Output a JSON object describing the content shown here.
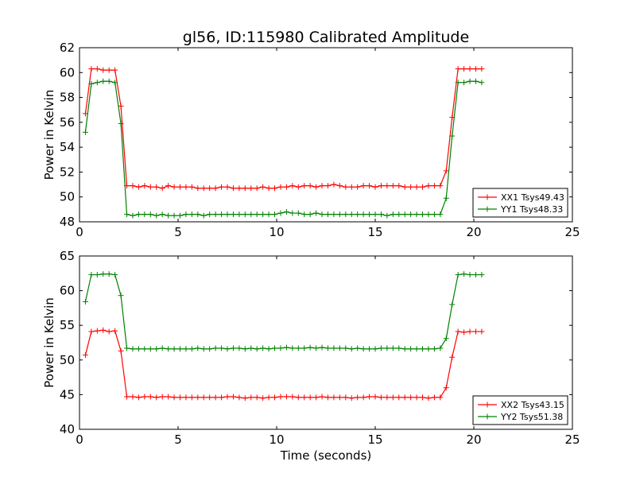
{
  "title": "gl56, ID:115980 Calibrated Amplitude",
  "xlabel": "Time (seconds)",
  "colors": {
    "red": "#ff0000",
    "green": "#008000",
    "axis": "#000000"
  },
  "chart_data": [
    {
      "type": "line",
      "ylabel": "Power in Kelvin",
      "xlim": [
        0,
        25
      ],
      "ylim": [
        48,
        62
      ],
      "xticks": [
        "0",
        "5",
        "10",
        "15",
        "20",
        "25"
      ],
      "yticks": [
        "48",
        "50",
        "52",
        "54",
        "56",
        "58",
        "60",
        "62"
      ],
      "x": [
        0.3,
        0.6,
        0.9,
        1.2,
        1.5,
        1.8,
        2.1,
        2.4,
        2.7,
        3.0,
        3.3,
        3.6,
        3.9,
        4.2,
        4.5,
        4.8,
        5.1,
        5.4,
        5.7,
        6.0,
        6.3,
        6.6,
        6.9,
        7.2,
        7.5,
        7.8,
        8.1,
        8.4,
        8.7,
        9.0,
        9.3,
        9.6,
        9.9,
        10.2,
        10.5,
        10.8,
        11.1,
        11.4,
        11.7,
        12.0,
        12.3,
        12.6,
        12.9,
        13.2,
        13.5,
        13.8,
        14.1,
        14.4,
        14.7,
        15.0,
        15.3,
        15.6,
        15.9,
        16.2,
        16.5,
        16.8,
        17.1,
        17.4,
        17.7,
        18.0,
        18.3,
        18.6,
        18.9,
        19.2,
        19.5,
        19.8,
        20.1,
        20.4
      ],
      "series": [
        {
          "name": "XX1 Tsys49.43",
          "color": "#ff0000",
          "values": [
            56.7,
            60.3,
            60.3,
            60.2,
            60.2,
            60.2,
            57.3,
            50.9,
            50.9,
            50.8,
            50.9,
            50.8,
            50.8,
            50.7,
            50.9,
            50.8,
            50.8,
            50.8,
            50.8,
            50.7,
            50.7,
            50.7,
            50.7,
            50.8,
            50.8,
            50.7,
            50.7,
            50.7,
            50.7,
            50.7,
            50.8,
            50.7,
            50.7,
            50.8,
            50.8,
            50.9,
            50.8,
            50.9,
            50.9,
            50.8,
            50.9,
            50.9,
            51.0,
            50.9,
            50.8,
            50.8,
            50.8,
            50.9,
            50.9,
            50.8,
            50.9,
            50.9,
            50.9,
            50.9,
            50.8,
            50.8,
            50.8,
            50.8,
            50.9,
            50.9,
            50.9,
            52.1,
            56.4,
            60.3,
            60.3,
            60.3,
            60.3,
            60.3
          ]
        },
        {
          "name": "YY1 Tsys48.33",
          "color": "#008000",
          "values": [
            55.2,
            59.1,
            59.2,
            59.3,
            59.3,
            59.2,
            55.9,
            48.6,
            48.5,
            48.6,
            48.6,
            48.6,
            48.5,
            48.6,
            48.5,
            48.5,
            48.5,
            48.6,
            48.6,
            48.6,
            48.5,
            48.6,
            48.6,
            48.6,
            48.6,
            48.6,
            48.6,
            48.6,
            48.6,
            48.6,
            48.6,
            48.6,
            48.6,
            48.7,
            48.8,
            48.7,
            48.7,
            48.6,
            48.6,
            48.7,
            48.6,
            48.6,
            48.6,
            48.6,
            48.6,
            48.6,
            48.6,
            48.6,
            48.6,
            48.6,
            48.6,
            48.5,
            48.6,
            48.6,
            48.6,
            48.6,
            48.6,
            48.6,
            48.6,
            48.6,
            48.6,
            49.9,
            54.9,
            59.2,
            59.2,
            59.3,
            59.3,
            59.2
          ]
        }
      ],
      "legend": "bottom-right"
    },
    {
      "type": "line",
      "ylabel": "Power in Kelvin",
      "xlabel": "Time (seconds)",
      "xlim": [
        0,
        25
      ],
      "ylim": [
        40,
        65
      ],
      "xticks": [
        "0",
        "5",
        "10",
        "15",
        "20",
        "25"
      ],
      "yticks": [
        "40",
        "45",
        "50",
        "55",
        "60",
        "65"
      ],
      "x": [
        0.3,
        0.6,
        0.9,
        1.2,
        1.5,
        1.8,
        2.1,
        2.4,
        2.7,
        3.0,
        3.3,
        3.6,
        3.9,
        4.2,
        4.5,
        4.8,
        5.1,
        5.4,
        5.7,
        6.0,
        6.3,
        6.6,
        6.9,
        7.2,
        7.5,
        7.8,
        8.1,
        8.4,
        8.7,
        9.0,
        9.3,
        9.6,
        9.9,
        10.2,
        10.5,
        10.8,
        11.1,
        11.4,
        11.7,
        12.0,
        12.3,
        12.6,
        12.9,
        13.2,
        13.5,
        13.8,
        14.1,
        14.4,
        14.7,
        15.0,
        15.3,
        15.6,
        15.9,
        16.2,
        16.5,
        16.8,
        17.1,
        17.4,
        17.7,
        18.0,
        18.3,
        18.6,
        18.9,
        19.2,
        19.5,
        19.8,
        20.1,
        20.4
      ],
      "series": [
        {
          "name": "XX2 Tsys43.15",
          "color": "#ff0000",
          "values": [
            50.7,
            54.1,
            54.2,
            54.3,
            54.1,
            54.2,
            51.3,
            44.7,
            44.7,
            44.6,
            44.7,
            44.7,
            44.6,
            44.7,
            44.7,
            44.6,
            44.6,
            44.6,
            44.6,
            44.6,
            44.6,
            44.6,
            44.6,
            44.6,
            44.7,
            44.7,
            44.6,
            44.5,
            44.6,
            44.6,
            44.5,
            44.6,
            44.6,
            44.7,
            44.7,
            44.7,
            44.6,
            44.6,
            44.6,
            44.6,
            44.7,
            44.6,
            44.6,
            44.6,
            44.6,
            44.5,
            44.6,
            44.6,
            44.7,
            44.7,
            44.6,
            44.6,
            44.6,
            44.6,
            44.6,
            44.6,
            44.6,
            44.6,
            44.5,
            44.6,
            44.6,
            46.0,
            50.4,
            54.1,
            54.0,
            54.1,
            54.1,
            54.1
          ]
        },
        {
          "name": "YY2 Tsys51.38",
          "color": "#008000",
          "values": [
            58.4,
            62.3,
            62.3,
            62.4,
            62.4,
            62.3,
            59.3,
            51.7,
            51.6,
            51.6,
            51.6,
            51.6,
            51.6,
            51.7,
            51.6,
            51.6,
            51.6,
            51.6,
            51.6,
            51.7,
            51.6,
            51.6,
            51.7,
            51.7,
            51.6,
            51.7,
            51.7,
            51.6,
            51.7,
            51.6,
            51.7,
            51.6,
            51.7,
            51.7,
            51.8,
            51.7,
            51.7,
            51.7,
            51.8,
            51.7,
            51.8,
            51.7,
            51.7,
            51.7,
            51.7,
            51.6,
            51.7,
            51.6,
            51.6,
            51.6,
            51.7,
            51.7,
            51.7,
            51.7,
            51.6,
            51.6,
            51.6,
            51.6,
            51.6,
            51.6,
            51.7,
            53.1,
            58.0,
            62.3,
            62.4,
            62.3,
            62.3,
            62.3
          ]
        }
      ],
      "legend": "bottom-right"
    }
  ]
}
